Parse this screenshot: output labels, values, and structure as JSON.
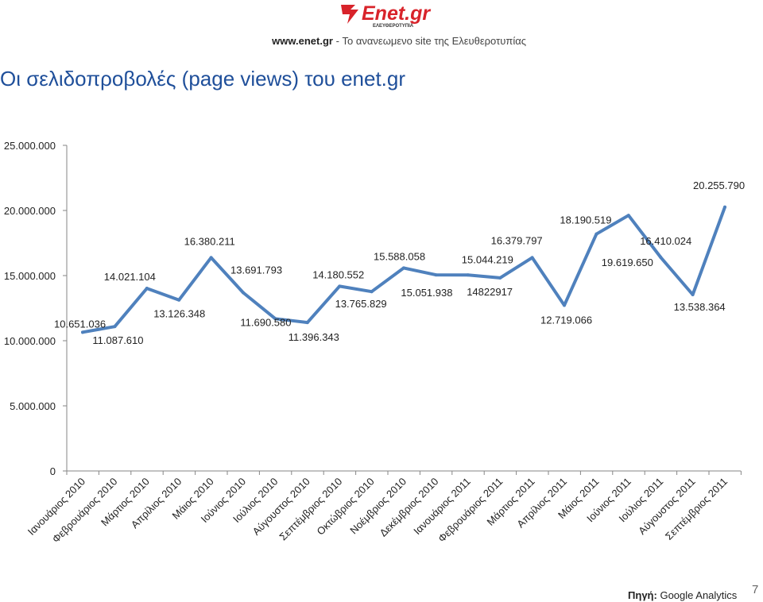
{
  "header": {
    "logo_text": "Enet.gr",
    "logo_sub": "ΕΛΕΥΘΕΡΟΤΥΠΙΑ",
    "site_url": "www.enet.gr",
    "site_tagline": " - Το ανανεωμενο site της Ελευθεροτυπίας"
  },
  "title": "Οι σελιδοπροβολές (page views) του enet.gr",
  "chart_data": {
    "type": "line",
    "title": "Οι σελιδοπροβολές (page views) του enet.gr",
    "xlabel": "",
    "ylabel": "",
    "ylim": [
      0,
      25000000
    ],
    "yticks": [
      0,
      5000000,
      10000000,
      15000000,
      20000000,
      25000000
    ],
    "ytick_labels": [
      "0",
      "5.000.000",
      "10.000.000",
      "15.000.000",
      "20.000.000",
      "25.000.000"
    ],
    "grid": false,
    "legend": "none",
    "color": "#4f81bd",
    "categories": [
      "Ιανουάριος 2010",
      "Φεβρουάριος 2010",
      "Μάρτιος 2010",
      "Απρίλιος 2010",
      "Μάιος 2010",
      "Ιούνιος 2010",
      "Ιούλιος 2010",
      "Αύγουστος 2010",
      "Σεπτέμβριος 2010",
      "Οκτώβριος 2010",
      "Νοέμβριος 2010",
      "Δεκέμβριος 2010",
      "Ιανουάριος 2011",
      "Φεβρουάριος 2011",
      "Μάρτιος 2011",
      "Απρίλιος 2011",
      "Μάιος 2011",
      "Ιούνιος 2011",
      "Ιούλιος 2011",
      "Αύγουστος 2011",
      "Σεπτέμβριος 2011"
    ],
    "values": [
      10651036,
      11087610,
      14021104,
      13126348,
      16380211,
      13691793,
      11690580,
      11396343,
      14180552,
      13765829,
      15588058,
      15051938,
      15044219,
      14822917,
      16379797,
      12719066,
      18190519,
      19619650,
      16410024,
      13538364,
      20255790
    ],
    "data_labels": [
      "10.651.036",
      "11.087.610",
      "14.021.104",
      "13.126.348",
      "16.380.211",
      "13.691.793",
      "11.690.580",
      "11.396.343",
      "14.180.552",
      "13.765.829",
      "15.588.058",
      "15.051.938",
      "15.044.219",
      "14822917",
      "16.379.797",
      "12.719.066",
      "18.190.519",
      "19.619.650",
      "16.410.024",
      "13.538.364",
      "20.255.790"
    ]
  },
  "footer": {
    "source_label": "Πηγή:",
    "source_value": " Google Analytics",
    "page_number": "7"
  }
}
